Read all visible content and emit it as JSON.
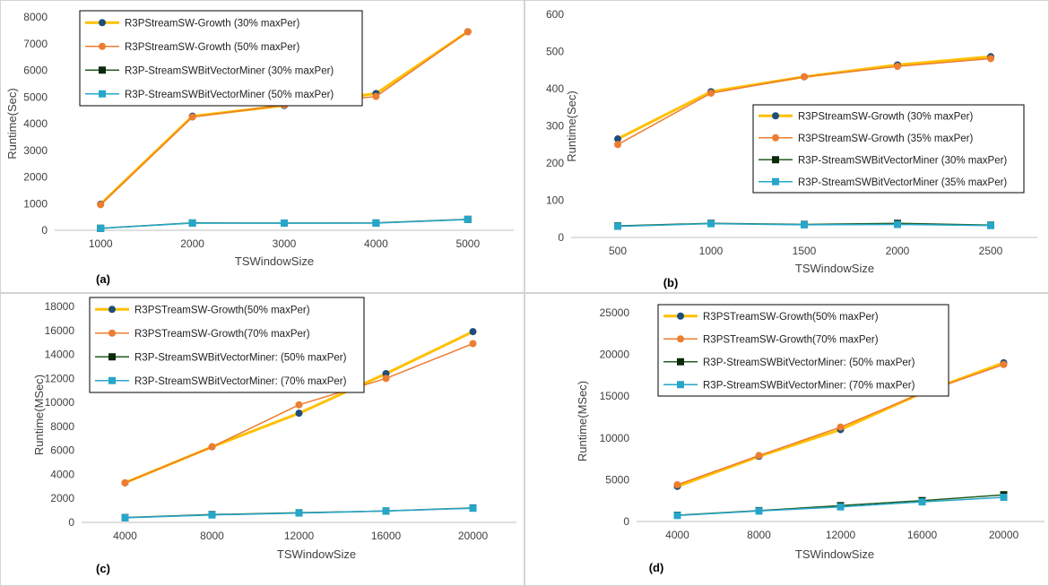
{
  "chart_data": [
    {
      "panel_label": "(a)",
      "type": "line",
      "xlabel": "TSWindowSize",
      "ylabel": "Runtime(Sec)",
      "categories": [
        "1000",
        "2000",
        "3000",
        "4000",
        "5000"
      ],
      "ylim": [
        0,
        8000
      ],
      "yticks": [
        0,
        1000,
        2000,
        3000,
        4000,
        5000,
        6000,
        7000,
        8000
      ],
      "legend_position": "top-left",
      "series": [
        {
          "name": "R3PStreamSW-Growth (30% maxPer)",
          "color": "#FFC000",
          "marker_color": "#1F4E79",
          "marker": "circle",
          "line_width": 3,
          "values": [
            980,
            4280,
            4680,
            5130,
            7450
          ]
        },
        {
          "name": "R3PStreamSW-Growth (50% maxPer)",
          "color": "#ED7D31",
          "marker_color": "#ED7D31",
          "marker": "circle",
          "line_width": 1.5,
          "values": [
            960,
            4250,
            4700,
            5020,
            7450
          ]
        },
        {
          "name": "R3P-StreamSWBitVectorMiner (30% maxPer)",
          "color": "#1E5C1E",
          "marker_color": "#0B2A0B",
          "marker": "square",
          "line_width": 1.5,
          "values": [
            75,
            275,
            270,
            275,
            410
          ]
        },
        {
          "name": "R3P-StreamSWBitVectorMiner (50% maxPer)",
          "color": "#26A6C9",
          "marker_color": "#26A6C9",
          "marker": "square",
          "line_width": 1.5,
          "values": [
            70,
            270,
            270,
            270,
            405
          ]
        }
      ]
    },
    {
      "panel_label": "(b)",
      "type": "line",
      "xlabel": "TSWindowSize",
      "ylabel": "Runtime(Sec)",
      "categories": [
        "500",
        "1000",
        "1500",
        "2000",
        "2500"
      ],
      "ylim": [
        0,
        600
      ],
      "yticks": [
        0,
        100,
        200,
        300,
        400,
        500,
        600
      ],
      "legend_position": "center-right",
      "series": [
        {
          "name": "R3PStreamSW-Growth (30% maxPer)",
          "color": "#FFC000",
          "marker_color": "#1F4E79",
          "marker": "circle",
          "line_width": 3,
          "values": [
            265,
            392,
            432,
            464,
            486
          ]
        },
        {
          "name": "R3PStreamSW-Growth (35% maxPer)",
          "color": "#ED7D31",
          "marker_color": "#ED7D31",
          "marker": "circle",
          "line_width": 1.5,
          "values": [
            250,
            388,
            432,
            460,
            481
          ]
        },
        {
          "name": "R3P-StreamSWBitVectorMiner (30% maxPer)",
          "color": "#1E5C1E",
          "marker_color": "#0B2A0B",
          "marker": "square",
          "line_width": 1.5,
          "values": [
            31,
            38,
            35,
            38,
            33
          ]
        },
        {
          "name": "R3P-StreamSWBitVectorMiner (35% maxPer)",
          "color": "#26A6C9",
          "marker_color": "#26A6C9",
          "marker": "square",
          "line_width": 1.5,
          "values": [
            30,
            37,
            34,
            35,
            32
          ]
        }
      ]
    },
    {
      "panel_label": "(c)",
      "type": "line",
      "xlabel": "TSWindowSize",
      "ylabel": "Runtime(MSec)",
      "categories": [
        "4000",
        "8000",
        "12000",
        "16000",
        "20000"
      ],
      "ylim": [
        0,
        18000
      ],
      "yticks": [
        0,
        2000,
        4000,
        6000,
        8000,
        10000,
        12000,
        14000,
        16000,
        18000
      ],
      "legend_position": "top-left",
      "series": [
        {
          "name": "R3PSTreamSW-Growth(50% maxPer)",
          "color": "#FFC000",
          "marker_color": "#1F4E79",
          "marker": "circle",
          "line_width": 3,
          "values": [
            3300,
            6300,
            9100,
            12400,
            15900
          ]
        },
        {
          "name": "R3PSTreamSW-Growth(70% maxPer)",
          "color": "#ED7D31",
          "marker_color": "#ED7D31",
          "marker": "circle",
          "line_width": 1.5,
          "values": [
            3300,
            6300,
            9800,
            12000,
            14900
          ]
        },
        {
          "name": "R3P-StreamSWBitVectorMiner: (50% maxPer)",
          "color": "#1E5C1E",
          "marker_color": "#0B2A0B",
          "marker": "square",
          "line_width": 1.5,
          "values": [
            400,
            650,
            800,
            950,
            1200
          ]
        },
        {
          "name": "R3P-StreamSWBitVectorMiner: (70% maxPer)",
          "color": "#26A6C9",
          "marker_color": "#26A6C9",
          "marker": "square",
          "line_width": 1.5,
          "values": [
            380,
            620,
            780,
            950,
            1180
          ]
        }
      ]
    },
    {
      "panel_label": "(d)",
      "type": "line",
      "xlabel": "TSWindowSize",
      "ylabel": "Runtime(MSec)",
      "categories": [
        "4000",
        "8000",
        "12000",
        "16000",
        "20000"
      ],
      "ylim": [
        0,
        25000
      ],
      "yticks": [
        0,
        5000,
        10000,
        15000,
        20000,
        25000
      ],
      "legend_position": "top-left",
      "series": [
        {
          "name": "R3PSTreamSW-Growth(50% maxPer)",
          "color": "#FFC000",
          "marker_color": "#1F4E79",
          "marker": "circle",
          "line_width": 3,
          "values": [
            4200,
            7800,
            11000,
            15400,
            19000
          ]
        },
        {
          "name": "R3PSTreamSW-Growth(70% maxPer)",
          "color": "#ED7D31",
          "marker_color": "#ED7D31",
          "marker": "circle",
          "line_width": 1.5,
          "values": [
            4400,
            7900,
            11300,
            15400,
            18800
          ]
        },
        {
          "name": "R3P-StreamSWBitVectorMiner: (50% maxPer)",
          "color": "#1E5C1E",
          "marker_color": "#0B2A0B",
          "marker": "square",
          "line_width": 1.5,
          "values": [
            750,
            1300,
            1900,
            2500,
            3200
          ]
        },
        {
          "name": "R3P-StreamSWBitVectorMiner: (70% maxPer)",
          "color": "#26A6C9",
          "marker_color": "#26A6C9",
          "marker": "square",
          "line_width": 1.5,
          "values": [
            720,
            1250,
            1750,
            2350,
            2900
          ]
        }
      ]
    }
  ]
}
